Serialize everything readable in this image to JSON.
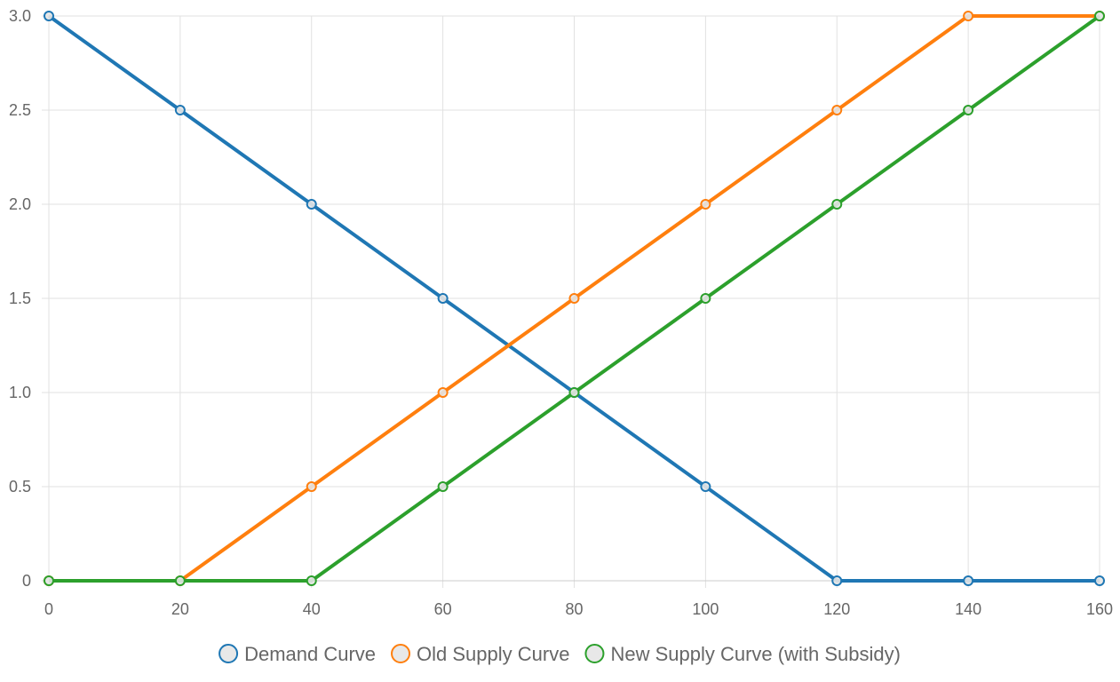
{
  "chart_data": {
    "type": "line",
    "x": [
      0,
      20,
      40,
      60,
      80,
      100,
      120,
      140,
      160
    ],
    "xlim": [
      0,
      160
    ],
    "ylim": [
      0,
      3
    ],
    "x_ticks": [
      "0",
      "20",
      "40",
      "60",
      "80",
      "100",
      "120",
      "140",
      "160"
    ],
    "y_ticks": [
      "0",
      "0.5",
      "1.0",
      "1.5",
      "2.0",
      "2.5",
      "3.0"
    ],
    "y_tick_values": [
      0,
      0.5,
      1,
      1.5,
      2,
      2.5,
      3
    ],
    "grid": true,
    "legend_position": "bottom",
    "series": [
      {
        "name": "Demand Curve",
        "color": "#1f77b4",
        "values": [
          3,
          2.5,
          2,
          1.5,
          1,
          0.5,
          0,
          0,
          0
        ]
      },
      {
        "name": "Old Supply Curve",
        "color": "#ff7f0e",
        "values": [
          0,
          0,
          0.5,
          1,
          1.5,
          2,
          2.5,
          3,
          3
        ]
      },
      {
        "name": "New Supply Curve (with Subsidy)",
        "color": "#2ca02c",
        "values": [
          0,
          0,
          0,
          0.5,
          1,
          1.5,
          2,
          2.5,
          3
        ]
      }
    ]
  }
}
